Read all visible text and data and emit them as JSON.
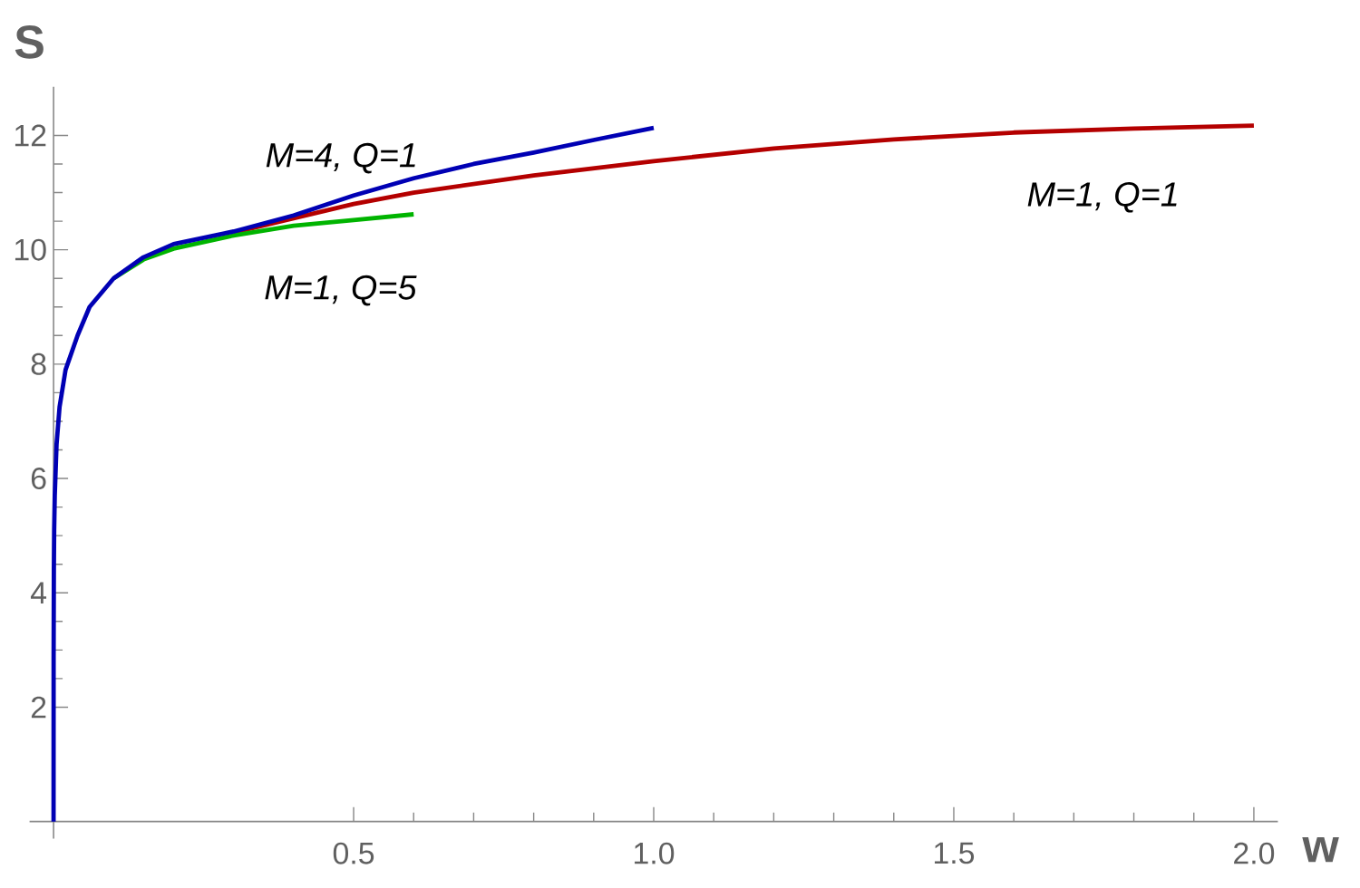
{
  "chart_data": {
    "type": "line",
    "xlabel": "w",
    "ylabel": "S",
    "xlim": [
      -0.04,
      2.04
    ],
    "ylim": [
      -0.3,
      12.85
    ],
    "xticks": [
      0.5,
      {
        "value": 1,
        "label": "1.0"
      },
      1.5,
      {
        "value": 2,
        "label": "2.0"
      }
    ],
    "yticks": [
      2,
      4,
      6,
      8,
      10,
      12
    ],
    "series": [
      {
        "color": "#b40000",
        "x": [
          0.3,
          0.4,
          0.5,
          0.6,
          0.8,
          1.0,
          1.2,
          1.4,
          1.6,
          1.8,
          2.0
        ],
        "values": [
          10.3,
          10.55,
          10.8,
          11.0,
          11.3,
          11.55,
          11.77,
          11.93,
          12.05,
          12.12,
          12.17
        ]
      },
      {
        "color": "#00b400",
        "x": [
          0.1,
          0.15,
          0.2,
          0.3,
          0.4,
          0.5,
          0.6
        ],
        "values": [
          9.5,
          9.83,
          10.02,
          10.25,
          10.42,
          10.52,
          10.62
        ]
      },
      {
        "color": "#0000b4",
        "x": [
          0,
          0.0001,
          0.0005,
          0.001,
          0.002,
          0.005,
          0.01,
          0.02,
          0.04,
          0.06,
          0.1,
          0.15,
          0.2,
          0.3,
          0.4,
          0.5,
          0.6,
          0.7,
          0.8,
          0.9,
          1.0
        ],
        "values": [
          0,
          2.9,
          4.4,
          5.1,
          5.7,
          6.6,
          7.25,
          7.9,
          8.5,
          9.0,
          9.5,
          9.87,
          10.1,
          10.32,
          10.6,
          10.95,
          11.25,
          11.5,
          11.7,
          11.92,
          12.13
        ]
      }
    ],
    "annotations": [
      "M=4, Q=1",
      "M=1, Q=5",
      "M=1, Q=1"
    ]
  }
}
